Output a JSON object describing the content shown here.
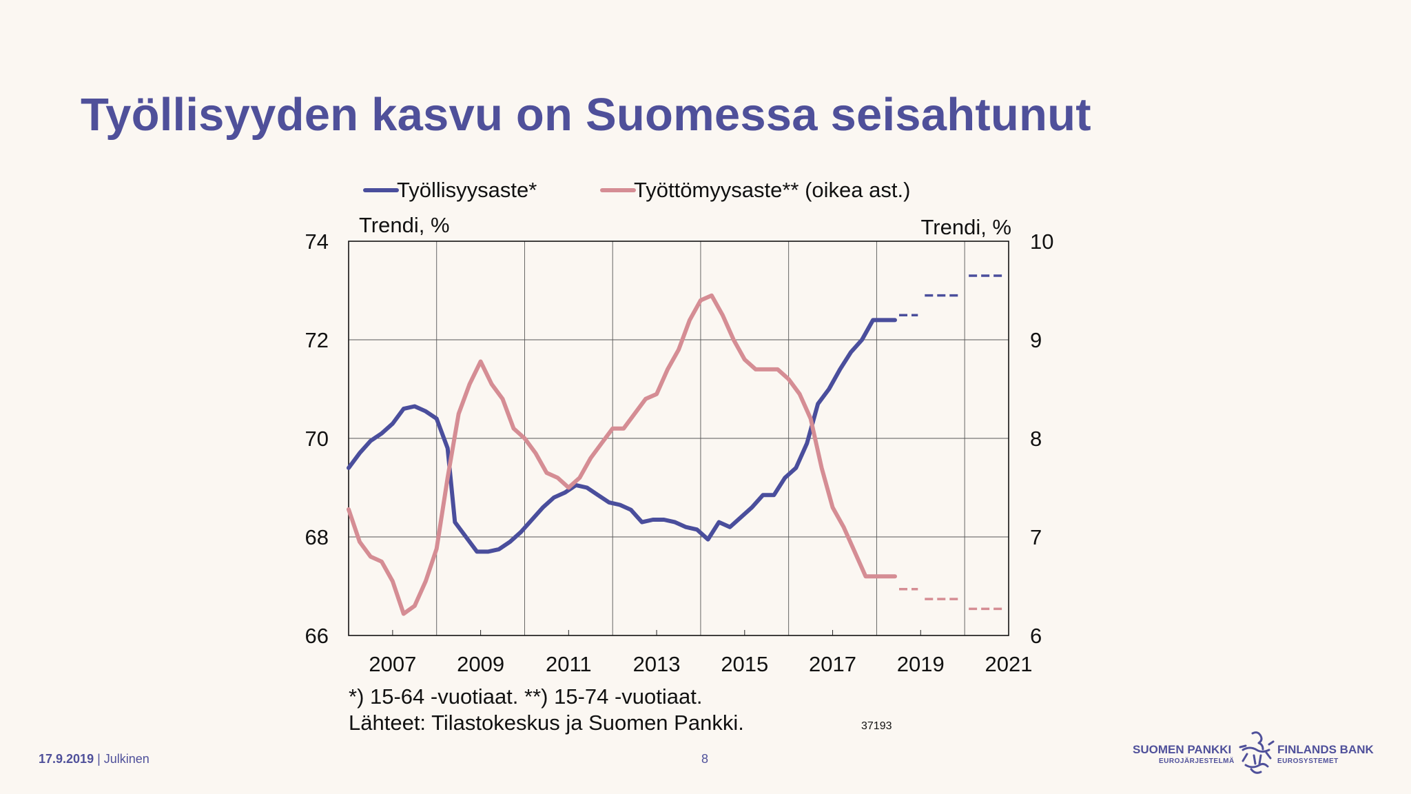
{
  "slide": {
    "title": "Työllisyyden kasvu on Suomessa seisahtunut"
  },
  "footer": {
    "date": "17.9.2019",
    "classification": "Julkinen",
    "page": "8"
  },
  "logo": {
    "name_fi": "SUOMEN PANKKI",
    "sub_fi": "EUROJÄRJESTELMÄ",
    "name_sv": "FINLANDS BANK",
    "sub_sv": "EUROSYSTEMET",
    "icon": "lion-emblem-icon"
  },
  "colors": {
    "title": "#4f509a",
    "employment": "#4a4e9c",
    "unemployment": "#d58d94"
  },
  "chart_data": {
    "type": "line",
    "left_unit": "Trendi, %",
    "right_unit": "Trendi, %",
    "x_ticks": [
      "2007",
      "2009",
      "2011",
      "2013",
      "2015",
      "2017",
      "2019",
      "2021"
    ],
    "xlim": [
      "2007-01",
      "2022-01"
    ],
    "ylim_left": [
      66,
      74
    ],
    "y_ticks_left": [
      "66",
      "68",
      "70",
      "72",
      "74"
    ],
    "ylim_right": [
      6,
      10
    ],
    "y_ticks_right": [
      "6",
      "7",
      "8",
      "9",
      "10"
    ],
    "grid": true,
    "legend_position": "top",
    "series": [
      {
        "name": "Työllisyysaste*",
        "axis": "left",
        "color": "#4a4e9c",
        "points": [
          [
            "2007-01",
            69.4
          ],
          [
            "2007-04",
            69.7
          ],
          [
            "2007-07",
            69.95
          ],
          [
            "2007-10",
            70.1
          ],
          [
            "2008-01",
            70.3
          ],
          [
            "2008-04",
            70.6
          ],
          [
            "2008-07",
            70.65
          ],
          [
            "2008-10",
            70.55
          ],
          [
            "2009-01",
            70.4
          ],
          [
            "2009-04",
            69.8
          ],
          [
            "2009-06",
            68.3
          ],
          [
            "2009-09",
            68.0
          ],
          [
            "2009-12",
            67.7
          ],
          [
            "2010-03",
            67.7
          ],
          [
            "2010-06",
            67.75
          ],
          [
            "2010-09",
            67.9
          ],
          [
            "2010-12",
            68.1
          ],
          [
            "2011-03",
            68.35
          ],
          [
            "2011-06",
            68.6
          ],
          [
            "2011-09",
            68.8
          ],
          [
            "2011-12",
            68.9
          ],
          [
            "2012-03",
            69.05
          ],
          [
            "2012-06",
            69.0
          ],
          [
            "2012-09",
            68.85
          ],
          [
            "2012-12",
            68.7
          ],
          [
            "2013-03",
            68.65
          ],
          [
            "2013-06",
            68.55
          ],
          [
            "2013-09",
            68.3
          ],
          [
            "2013-12",
            68.35
          ],
          [
            "2014-03",
            68.35
          ],
          [
            "2014-06",
            68.3
          ],
          [
            "2014-09",
            68.2
          ],
          [
            "2014-12",
            68.15
          ],
          [
            "2015-03",
            67.95
          ],
          [
            "2015-06",
            68.3
          ],
          [
            "2015-09",
            68.2
          ],
          [
            "2015-12",
            68.4
          ],
          [
            "2016-03",
            68.6
          ],
          [
            "2016-06",
            68.85
          ],
          [
            "2016-09",
            68.85
          ],
          [
            "2016-12",
            69.2
          ],
          [
            "2017-03",
            69.4
          ],
          [
            "2017-06",
            69.9
          ],
          [
            "2017-09",
            70.7
          ],
          [
            "2017-12",
            71.0
          ],
          [
            "2018-03",
            71.4
          ],
          [
            "2018-06",
            71.75
          ],
          [
            "2018-09",
            72.0
          ],
          [
            "2018-12",
            72.4
          ],
          [
            "2019-03",
            72.4
          ],
          [
            "2019-06",
            72.4
          ]
        ],
        "forecast": [
          {
            "x": [
              "2019-06",
              "2020-01"
            ],
            "y": 72.5
          },
          {
            "x": [
              "2020-01",
              "2021-01"
            ],
            "y": 72.9
          },
          {
            "x": [
              "2021-01",
              "2022-01"
            ],
            "y": 73.3
          }
        ]
      },
      {
        "name": "Työttömyysaste** (oikea ast.)",
        "axis": "right",
        "color": "#d58d94",
        "points": [
          [
            "2007-01",
            7.28
          ],
          [
            "2007-04",
            6.95
          ],
          [
            "2007-07",
            6.8
          ],
          [
            "2007-10",
            6.75
          ],
          [
            "2008-01",
            6.55
          ],
          [
            "2008-04",
            6.22
          ],
          [
            "2008-07",
            6.3
          ],
          [
            "2008-10",
            6.55
          ],
          [
            "2009-01",
            6.88
          ],
          [
            "2009-04",
            7.6
          ],
          [
            "2009-07",
            8.25
          ],
          [
            "2009-10",
            8.55
          ],
          [
            "2010-01",
            8.78
          ],
          [
            "2010-04",
            8.55
          ],
          [
            "2010-07",
            8.4
          ],
          [
            "2010-10",
            8.1
          ],
          [
            "2011-01",
            8.0
          ],
          [
            "2011-04",
            7.85
          ],
          [
            "2011-07",
            7.65
          ],
          [
            "2011-10",
            7.6
          ],
          [
            "2012-01",
            7.5
          ],
          [
            "2012-04",
            7.6
          ],
          [
            "2012-07",
            7.8
          ],
          [
            "2012-10",
            7.95
          ],
          [
            "2013-01",
            8.1
          ],
          [
            "2013-04",
            8.1
          ],
          [
            "2013-07",
            8.25
          ],
          [
            "2013-10",
            8.4
          ],
          [
            "2014-01",
            8.45
          ],
          [
            "2014-04",
            8.7
          ],
          [
            "2014-07",
            8.9
          ],
          [
            "2014-10",
            9.2
          ],
          [
            "2015-01",
            9.4
          ],
          [
            "2015-04",
            9.45
          ],
          [
            "2015-07",
            9.25
          ],
          [
            "2015-10",
            9.0
          ],
          [
            "2016-01",
            8.8
          ],
          [
            "2016-04",
            8.7
          ],
          [
            "2016-07",
            8.7
          ],
          [
            "2016-10",
            8.7
          ],
          [
            "2017-01",
            8.6
          ],
          [
            "2017-04",
            8.45
          ],
          [
            "2017-07",
            8.2
          ],
          [
            "2017-10",
            7.7
          ],
          [
            "2018-01",
            7.3
          ],
          [
            "2018-04",
            7.1
          ],
          [
            "2018-07",
            6.85
          ],
          [
            "2018-10",
            6.6
          ],
          [
            "2019-01",
            6.6
          ],
          [
            "2019-06",
            6.6
          ]
        ],
        "forecast": [
          {
            "x": [
              "2019-06",
              "2020-01"
            ],
            "y": 6.47
          },
          {
            "x": [
              "2020-01",
              "2021-01"
            ],
            "y": 6.37
          },
          {
            "x": [
              "2021-01",
              "2022-01"
            ],
            "y": 6.27
          }
        ]
      }
    ],
    "footnote": "*) 15-64 -vuotiaat. **) 15-74 -vuotiaat.",
    "source": "Lähteet:  Tilastokeskus ja Suomen Pankki.",
    "chart_id": "37193"
  }
}
